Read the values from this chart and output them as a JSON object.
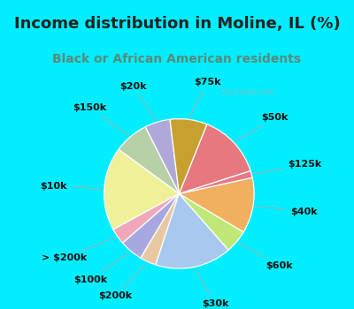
{
  "title": "Income distribution in Moline, IL (%)",
  "subtitle": "Black or African American residents",
  "bg_cyan": "#00eeff",
  "bg_chart": "#d8f0e8",
  "labels": [
    "$20k",
    "$150k",
    "$10k",
    "> $200k",
    "$100k",
    "$200k",
    "$30k",
    "$60k",
    "$40k",
    "$125k",
    "$50k",
    "$75k"
  ],
  "values": [
    5.5,
    7.5,
    18.0,
    3.5,
    5.0,
    3.5,
    16.5,
    5.0,
    12.0,
    1.5,
    14.0,
    8.0
  ],
  "colors": [
    "#b0a8d8",
    "#b8d0a8",
    "#f0f098",
    "#f0a8b8",
    "#a8a8e0",
    "#e8c8a0",
    "#a8c8f0",
    "#c0e878",
    "#f0b060",
    "#e87888",
    "#e87880",
    "#c8a030"
  ],
  "startangle": 97,
  "wedge_edge_color": "white",
  "label_fontsize": 8.0,
  "title_fontsize": 13,
  "subtitle_fontsize": 10,
  "title_color": "#222222",
  "subtitle_color": "#5a8a7a"
}
